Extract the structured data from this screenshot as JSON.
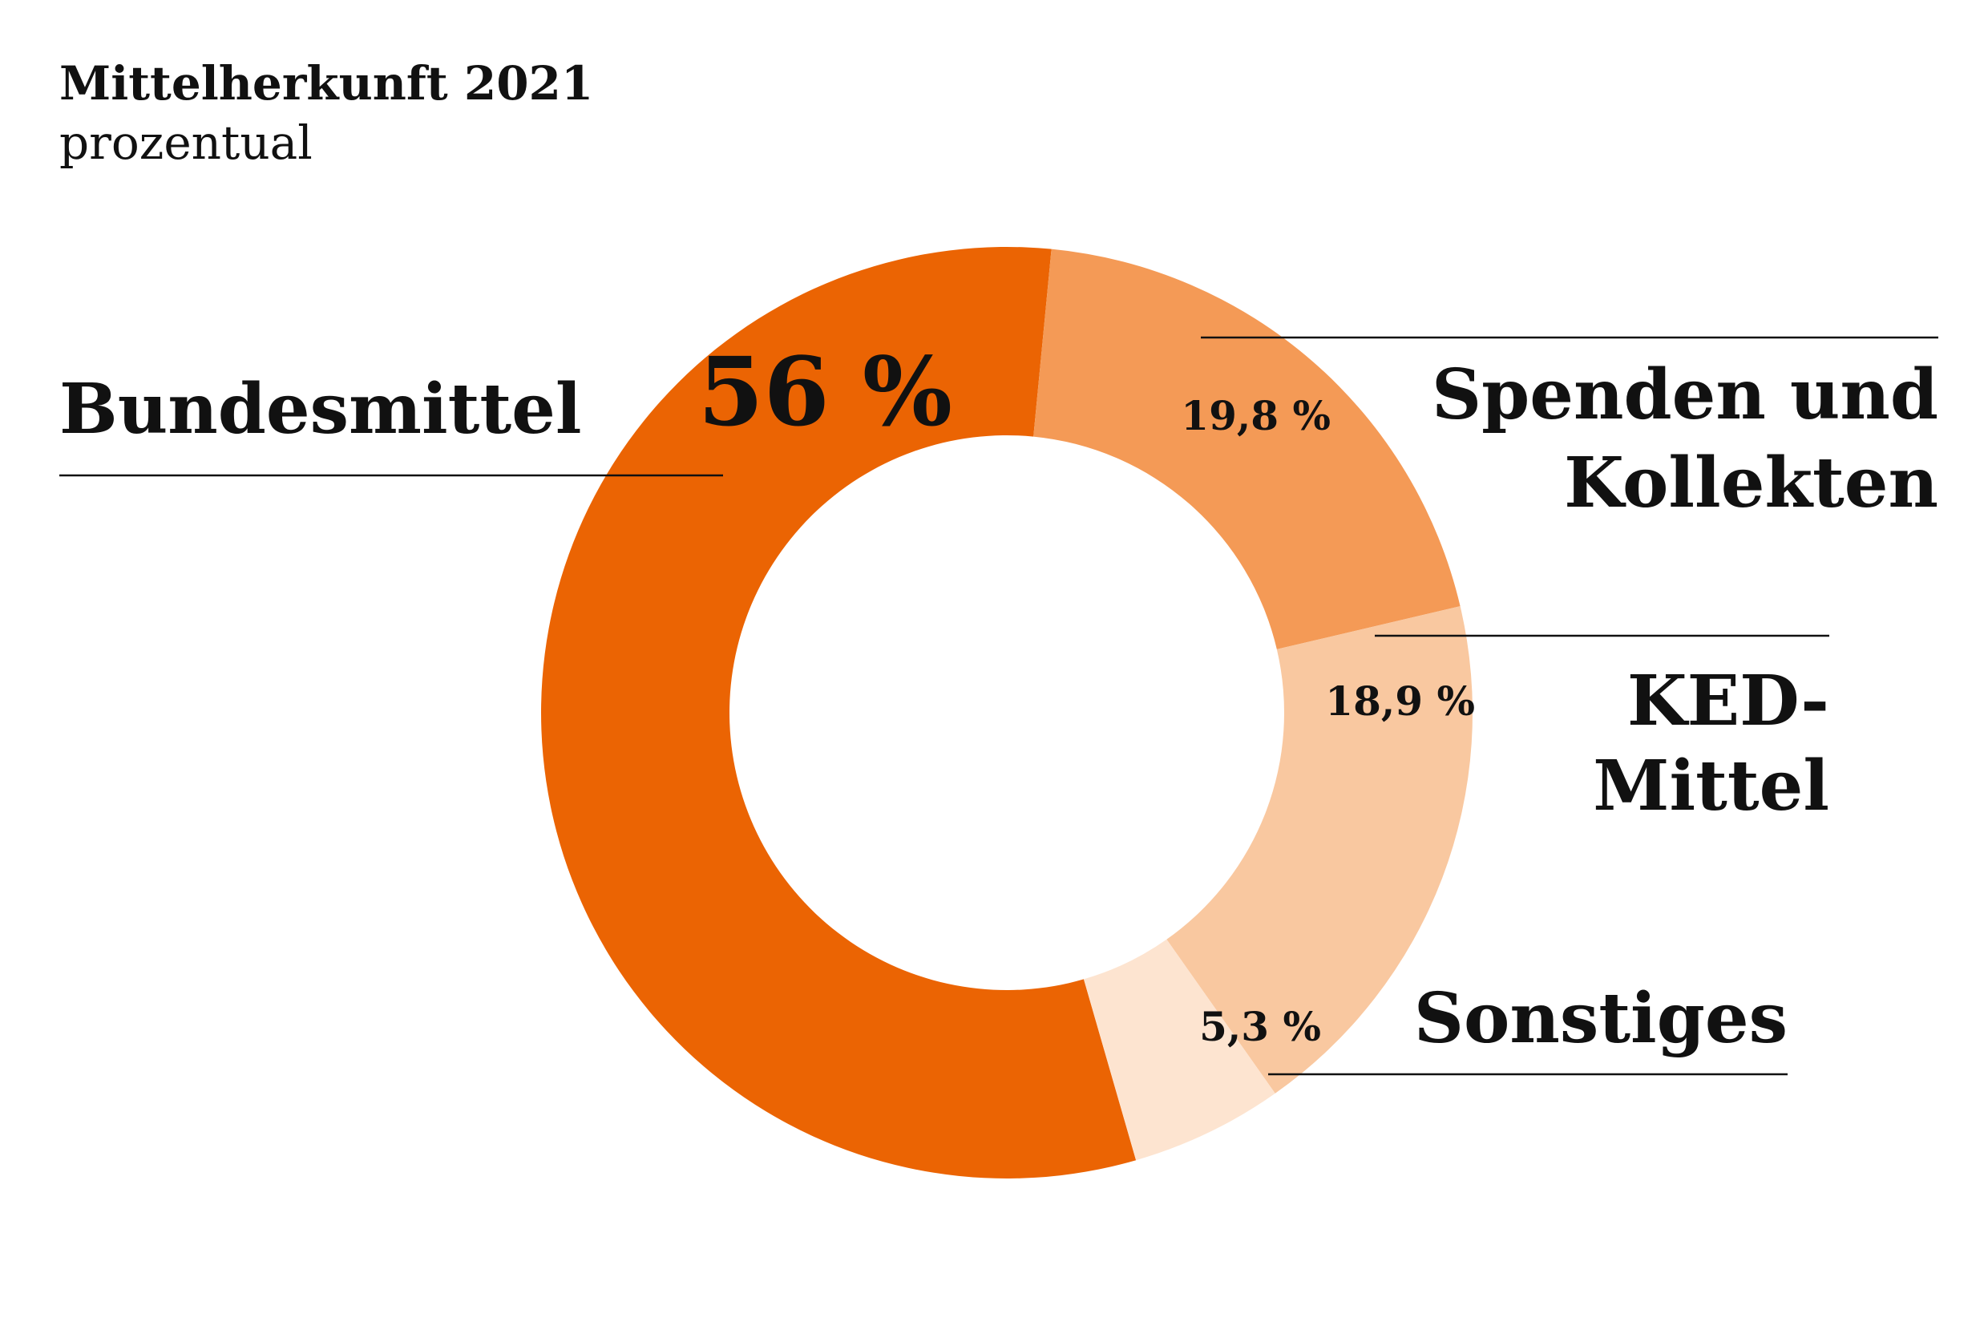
{
  "header": {
    "title": "Mittelherkunft 2021",
    "subtitle": "prozentual"
  },
  "chart_data": {
    "type": "pie",
    "style": "donut",
    "title": "Mittelherkunft 2021",
    "subtitle": "prozentual",
    "categories": [
      "Bundesmittel",
      "Spenden und Kollekten",
      "KED-Mittel",
      "Sonstiges"
    ],
    "values": [
      56,
      19.8,
      18.9,
      5.3
    ],
    "value_labels": [
      "56 %",
      "19,8 %",
      "18,9 %",
      "5,3 %"
    ],
    "label_lines": [
      [
        "Bundesmittel"
      ],
      [
        "Spenden und",
        "Kollekten"
      ],
      [
        "KED-",
        "Mittel"
      ],
      [
        "Sonstiges"
      ]
    ],
    "colors": [
      "#EB6403",
      "#F49A56",
      "#F9C8A0",
      "#FDE4D0"
    ],
    "unit": "%"
  }
}
